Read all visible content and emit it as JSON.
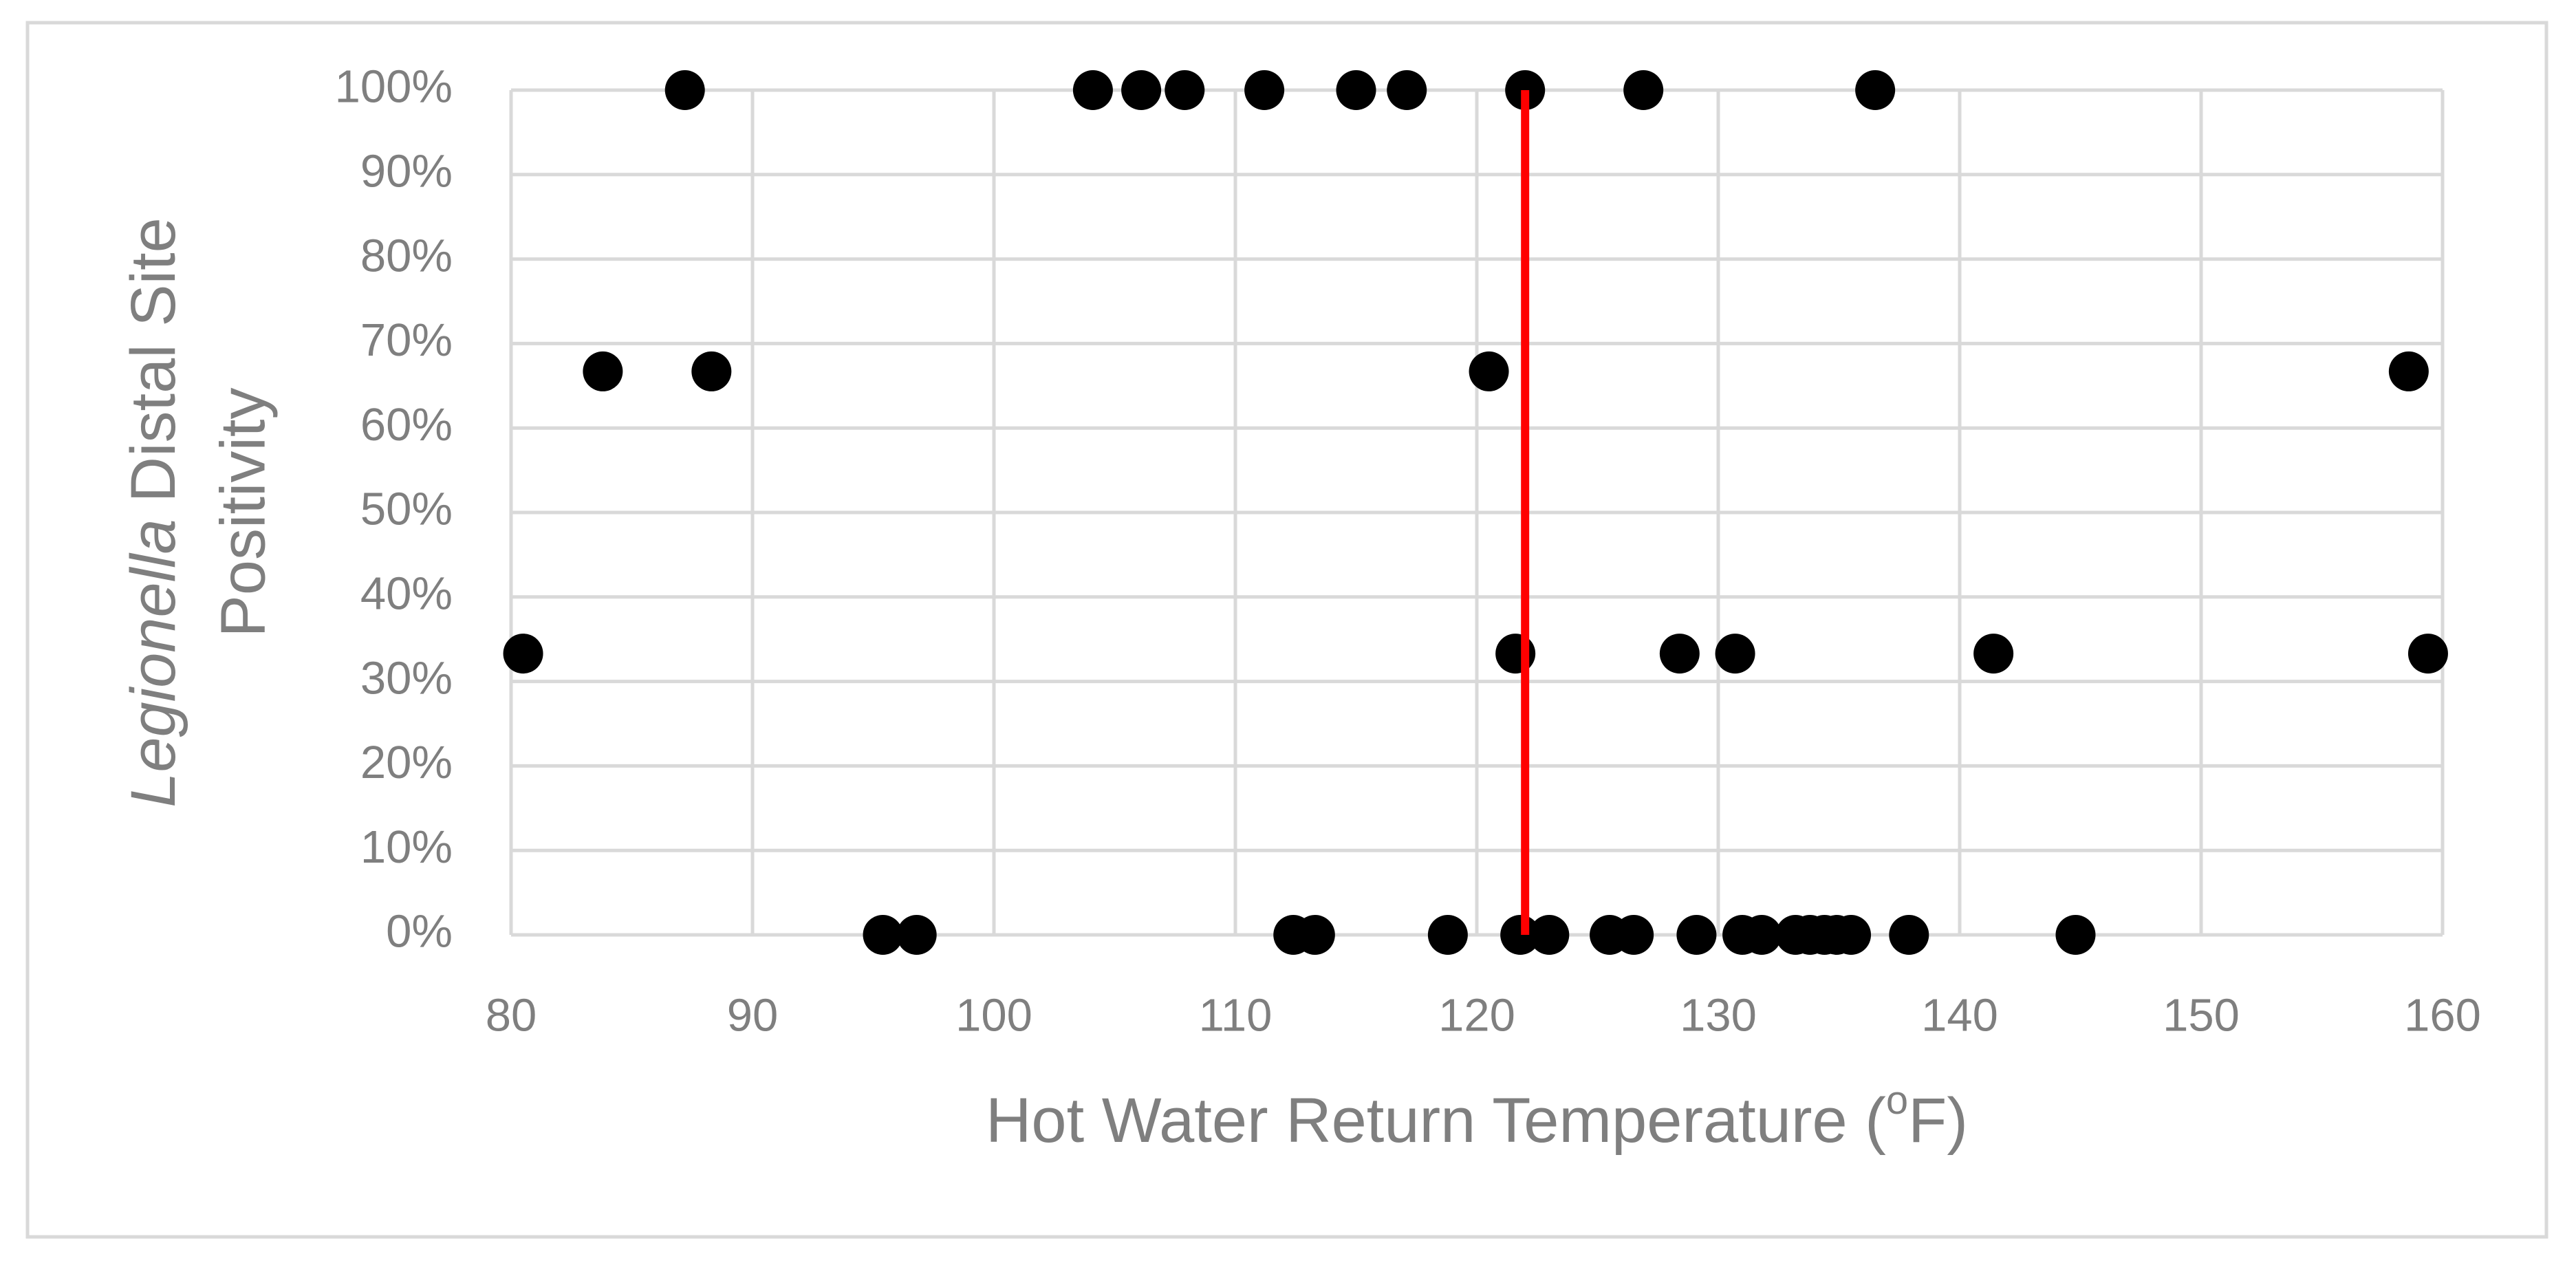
{
  "chart_data": {
    "type": "scatter",
    "xlabel": [
      "Hot Water Return Temperature (",
      "o",
      "F)"
    ],
    "ylabel": [
      "Legionella",
      "Distal Site",
      "Positivity"
    ],
    "x": [
      87.2,
      104.1,
      106.1,
      107.9,
      111.2,
      115.0,
      117.1,
      122.0,
      126.9,
      136.5,
      83.8,
      88.3,
      120.5,
      158.6,
      80.5,
      121.6,
      128.4,
      130.7,
      141.4,
      159.4,
      95.4,
      96.8,
      112.4,
      113.3,
      118.8,
      121.8,
      123.0,
      125.5,
      126.5,
      129.1,
      131.0,
      131.8,
      133.2,
      133.8,
      134.4,
      134.9,
      135.5,
      137.9,
      144.8
    ],
    "values": [
      100,
      100,
      100,
      100,
      100,
      100,
      100,
      100,
      100,
      100,
      66.7,
      66.7,
      66.7,
      66.7,
      33.3,
      33.3,
      33.3,
      33.3,
      33.3,
      33.3,
      0,
      0,
      0,
      0,
      0,
      0,
      0,
      0,
      0,
      0,
      0,
      0,
      0,
      0,
      0,
      0,
      0,
      0,
      0
    ],
    "color": "#000000",
    "reference_line": {
      "x": 122,
      "color": "#ff0000"
    },
    "xlim": [
      80,
      160
    ],
    "xticks": [
      80,
      90,
      100,
      110,
      120,
      130,
      140,
      150,
      160
    ],
    "ylim": [
      0,
      100
    ],
    "yticks": [
      {
        "value": 0,
        "label": "0%"
      },
      {
        "value": 10,
        "label": "10%"
      },
      {
        "value": 20,
        "label": "20%"
      },
      {
        "value": 30,
        "label": "30%"
      },
      {
        "value": 40,
        "label": "40%"
      },
      {
        "value": 50,
        "label": "50%"
      },
      {
        "value": 60,
        "label": "60%"
      },
      {
        "value": 70,
        "label": "70%"
      },
      {
        "value": 80,
        "label": "80%"
      },
      {
        "value": 90,
        "label": "90%"
      },
      {
        "value": 100,
        "label": "100%"
      }
    ],
    "grid": true
  }
}
